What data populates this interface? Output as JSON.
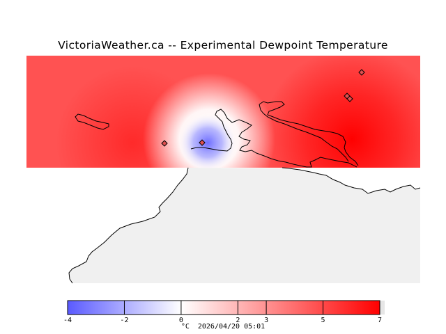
{
  "title": "VictoriaWeather.ca -- Experimental Dewpoint Temperature",
  "colorbar": {
    "min": -4,
    "max": 7,
    "tick_labels": [
      "-4",
      "-2",
      "0",
      "2",
      "3",
      "5",
      "7"
    ],
    "tick_values": [
      -4,
      -2,
      0,
      2,
      3,
      5,
      7
    ],
    "cold_color": "#5a5aff",
    "neutral_color": "#ffffff",
    "warm_color": "#ff0000"
  },
  "footer": {
    "unit": "°C",
    "timestamp": "2026/04/20 05:01"
  },
  "colors": {
    "land": "#f0f0f0",
    "coast": "#000000",
    "station_marker": "#e05050"
  }
}
